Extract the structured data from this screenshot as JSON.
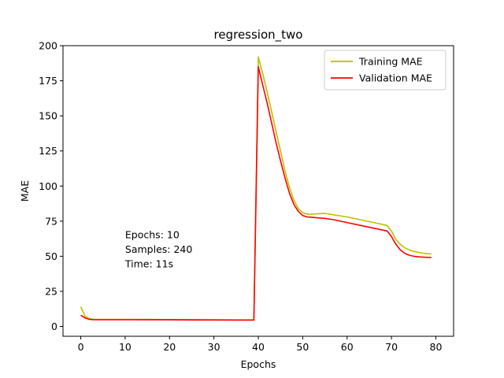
{
  "chart_data": {
    "type": "line",
    "title": "regression_two",
    "xlabel": "Epochs",
    "ylabel": "MAE",
    "xlim": [
      -4,
      84
    ],
    "ylim": [
      -7,
      200
    ],
    "xticks": [
      0,
      10,
      20,
      30,
      40,
      50,
      60,
      70,
      80
    ],
    "yticks": [
      0,
      25,
      50,
      75,
      100,
      125,
      150,
      175,
      200
    ],
    "grid": false,
    "legend_position": "top-right",
    "series": [
      {
        "name": "Training MAE",
        "color": "#bfbf00",
        "x": [
          0,
          1,
          2,
          3,
          4,
          5,
          10,
          15,
          20,
          25,
          30,
          35,
          39,
          40,
          41,
          42,
          43,
          44,
          45,
          46,
          47,
          48,
          49,
          50,
          51,
          52,
          53,
          55,
          57,
          60,
          63,
          66,
          69,
          70,
          71,
          72,
          73,
          74,
          75,
          76,
          77,
          78,
          79
        ],
        "y": [
          14,
          7,
          5.5,
          5,
          5,
          5,
          5,
          5,
          4.9,
          4.9,
          4.8,
          4.8,
          4.8,
          192,
          180,
          167,
          153,
          139,
          125,
          111,
          99,
          90,
          84,
          81,
          80,
          80,
          80.2,
          80.5,
          79.5,
          78,
          76,
          74,
          72,
          68,
          62,
          58.5,
          56,
          54.5,
          53.5,
          52.8,
          52.2,
          51.8,
          51.6
        ]
      },
      {
        "name": "Validation MAE",
        "color": "#ff0000",
        "x": [
          0,
          1,
          2,
          3,
          4,
          5,
          10,
          15,
          20,
          25,
          30,
          35,
          39,
          40,
          41,
          42,
          43,
          44,
          45,
          46,
          47,
          48,
          49,
          50,
          51,
          52,
          53,
          55,
          57,
          60,
          63,
          66,
          69,
          70,
          71,
          72,
          73,
          74,
          75,
          76,
          77,
          78,
          79
        ],
        "y": [
          8,
          6,
          5,
          4.8,
          4.8,
          4.8,
          4.8,
          4.7,
          4.7,
          4.6,
          4.6,
          4.5,
          4.5,
          185,
          172,
          159,
          145,
          131,
          118,
          106,
          95,
          87,
          82,
          79,
          78,
          77.8,
          77.5,
          77,
          76,
          74,
          72,
          70,
          68,
          64,
          58.5,
          54.5,
          52,
          50.8,
          50,
          49.6,
          49.4,
          49.2,
          49.1
        ]
      }
    ],
    "annotation": {
      "x": 10,
      "y": 65,
      "lines": [
        "Epochs: 10",
        "Samples: 240",
        "Time: 11s"
      ]
    }
  }
}
